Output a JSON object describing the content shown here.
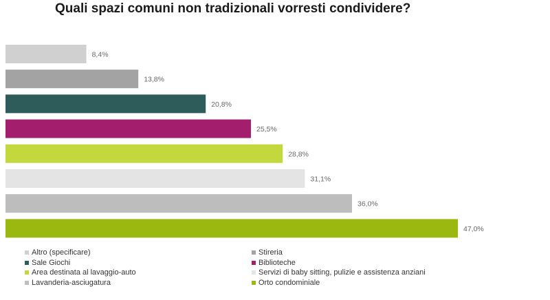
{
  "chart_data": {
    "type": "bar",
    "orientation": "horizontal",
    "title": "Quali spazi comuni non tradizionali vorresti condividere?",
    "categories": [
      "Altro (specificare)",
      "Stireria",
      "Sale Giochi",
      "Biblioteche",
      "Area destinata al lavaggio-auto",
      "Servizi di baby sitting, pulizie e assistenza anziani",
      "Lavanderia-asciugatura",
      "Orto condominiale"
    ],
    "values": [
      8.4,
      13.8,
      20.8,
      25.5,
      28.8,
      31.1,
      36.0,
      47.0
    ],
    "value_labels": [
      "8,4%",
      "13,8%",
      "20,8%",
      "25,5%",
      "28,8%",
      "31,1%",
      "36,0%",
      "47,0%"
    ],
    "colors": [
      "#d0d0d0",
      "#a3a3a3",
      "#2e5c5a",
      "#a31f6e",
      "#c3d83d",
      "#e4e4e4",
      "#bdbdbd",
      "#9ab80f"
    ],
    "xlim": [
      0,
      50
    ],
    "xlabel": "",
    "ylabel": "",
    "grid": false,
    "legend_position": "bottom"
  }
}
